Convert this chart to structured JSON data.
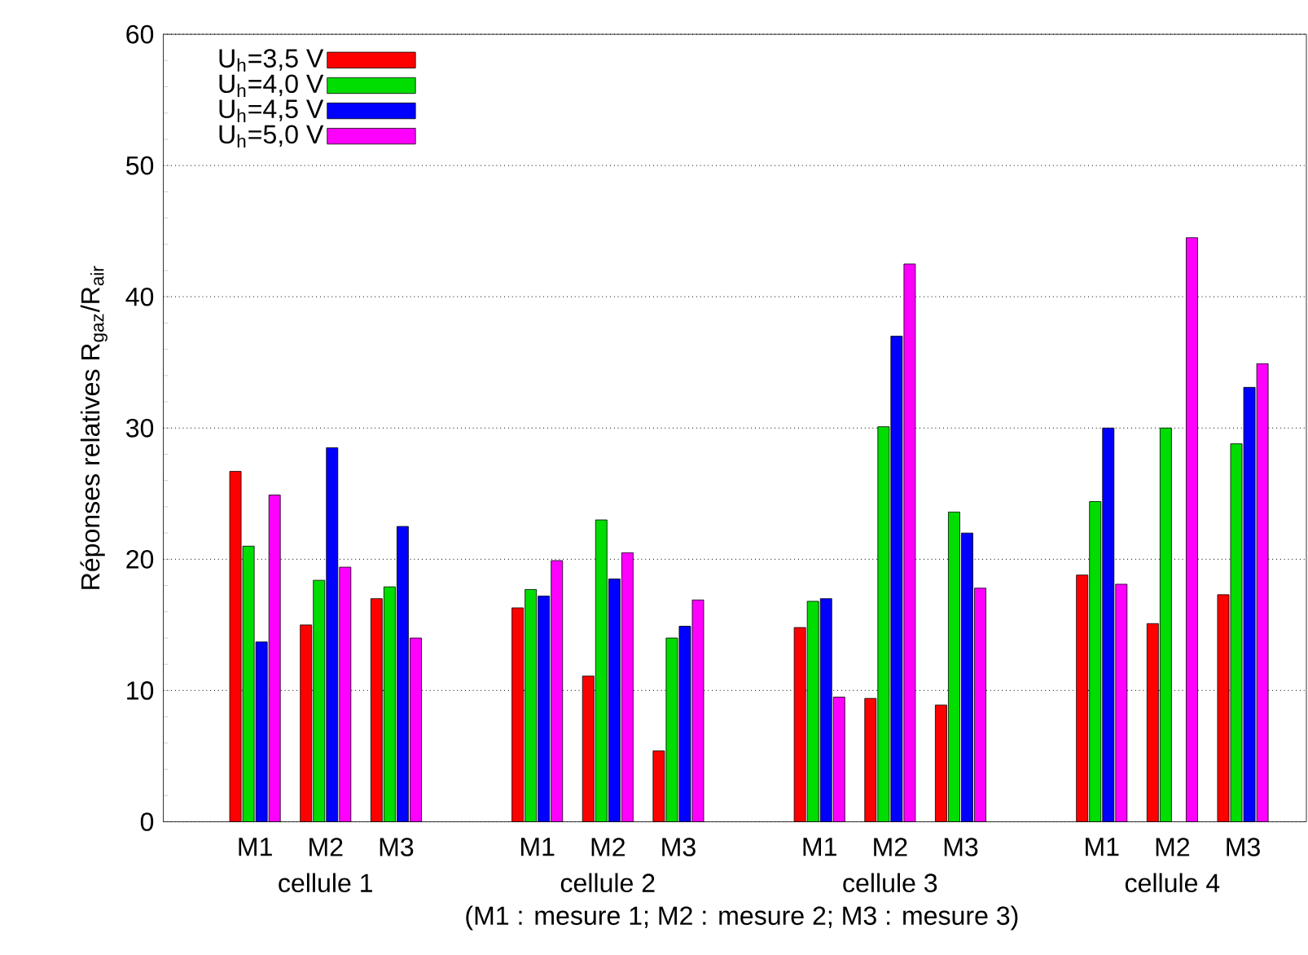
{
  "chart_data": {
    "type": "bar",
    "ylabel": "Réponses relatives R$_{gaz}$/R$_{air}$",
    "categories": [
      "M1",
      "M2",
      "M3",
      null,
      "M1",
      "M2",
      "M3",
      null,
      "M1",
      "M2",
      "M3",
      null,
      "M1",
      "M2",
      "M3"
    ],
    "series": [
      {
        "name": "U$_{h}$=3,5 V",
        "color": "#ff0000",
        "values": [
          26.7,
          15.0,
          17.0,
          null,
          16.3,
          11.1,
          5.4,
          null,
          14.8,
          9.4,
          8.9,
          null,
          18.8,
          15.1,
          17.3
        ]
      },
      {
        "name": "U$_{h}$=4,0 V",
        "color": "#00dd00",
        "values": [
          21.0,
          18.4,
          17.9,
          null,
          17.7,
          23.0,
          14.0,
          null,
          16.8,
          30.1,
          23.6,
          null,
          24.4,
          30.0,
          28.8
        ]
      },
      {
        "name": "U$_{h}$=4,5 V",
        "color": "#0000ff",
        "values": [
          13.7,
          28.5,
          22.5,
          null,
          17.2,
          18.5,
          14.9,
          null,
          17.0,
          37.0,
          22.0,
          null,
          30.0,
          null,
          33.1
        ]
      },
      {
        "name": "U$_{h}$=5,0 V",
        "color": "#ff00ff",
        "values": [
          24.9,
          19.4,
          14.0,
          null,
          19.9,
          20.5,
          16.9,
          null,
          9.5,
          42.5,
          17.8,
          null,
          18.1,
          44.5,
          34.9
        ]
      }
    ],
    "ylim": [
      0,
      60
    ],
    "yticks": [
      0,
      10,
      20,
      30,
      40,
      50,
      60
    ],
    "grid": "y",
    "legend": "top left",
    "annotations": [
      "cellule 1",
      "cellule 2",
      "cellule 3",
      "cellule 4",
      "(M1 : mesure 1; M2 : mesure 2; M3 : mesure 3)"
    ]
  }
}
